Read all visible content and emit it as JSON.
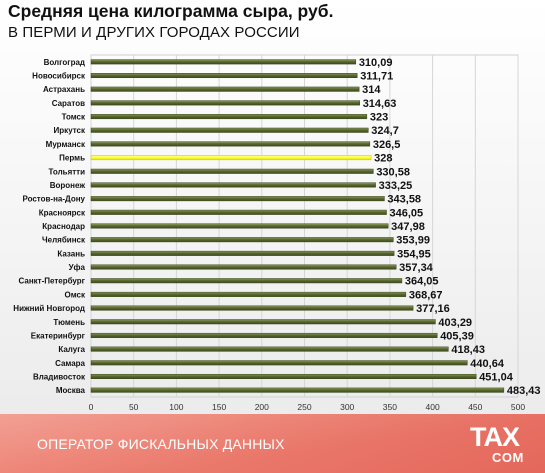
{
  "header": {
    "title": "Средняя цена килограмма сыра, руб.",
    "subtitle": "В ПЕРМИ И ДРУГИХ ГОРОДАХ РОССИИ"
  },
  "footer": {
    "operator_text": "ОПЕРАТОР ФИСКАЛЬНЫХ ДАННЫХ",
    "logo_top": "TAX",
    "logo_bottom": "COM"
  },
  "colors": {
    "bar": "#5a6a30",
    "bar_highlight": "#ffff33",
    "footer": "#ea7a6c"
  },
  "chart_data": {
    "type": "bar",
    "orientation": "horizontal",
    "title": "Средняя цена килограмма сыра, руб.",
    "subtitle": "В ПЕРМИ И ДРУГИХ ГОРОДАХ РОССИИ",
    "categories": [
      "Волгоград",
      "Новосибирск",
      "Астрахань",
      "Саратов",
      "Томск",
      "Иркутск",
      "Мурманск",
      "Пермь",
      "Тольятти",
      "Воронеж",
      "Ростов-на-Дону",
      "Красноярск",
      "Краснодар",
      "Челябинск",
      "Казань",
      "Уфа",
      "Санкт-Петербург",
      "Омск",
      "Нижний Новгород",
      "Тюмень",
      "Екатеринбург",
      "Калуга",
      "Самара",
      "Владивосток",
      "Москва"
    ],
    "values": [
      310.09,
      311.71,
      314,
      314.63,
      323,
      324.7,
      326.5,
      328,
      330.58,
      333.25,
      343.58,
      346.05,
      347.98,
      353.99,
      354.95,
      357.34,
      364.05,
      368.67,
      377.16,
      403.29,
      405.39,
      418.43,
      440.64,
      451.04,
      483.43
    ],
    "value_labels": [
      "310,09",
      "311,71",
      "314",
      "314,63",
      "323",
      "324,7",
      "326,5",
      "328",
      "330,58",
      "333,25",
      "343,58",
      "346,05",
      "347,98",
      "353,99",
      "354,95",
      "357,34",
      "364,05",
      "368,67",
      "377,16",
      "403,29",
      "405,39",
      "418,43",
      "440,64",
      "451,04",
      "483,43"
    ],
    "highlight": "Пермь",
    "xlim": [
      0,
      500
    ],
    "xticks": [
      0,
      50,
      100,
      150,
      200,
      250,
      300,
      350,
      400,
      450,
      500
    ],
    "grid": true,
    "legend": false
  }
}
